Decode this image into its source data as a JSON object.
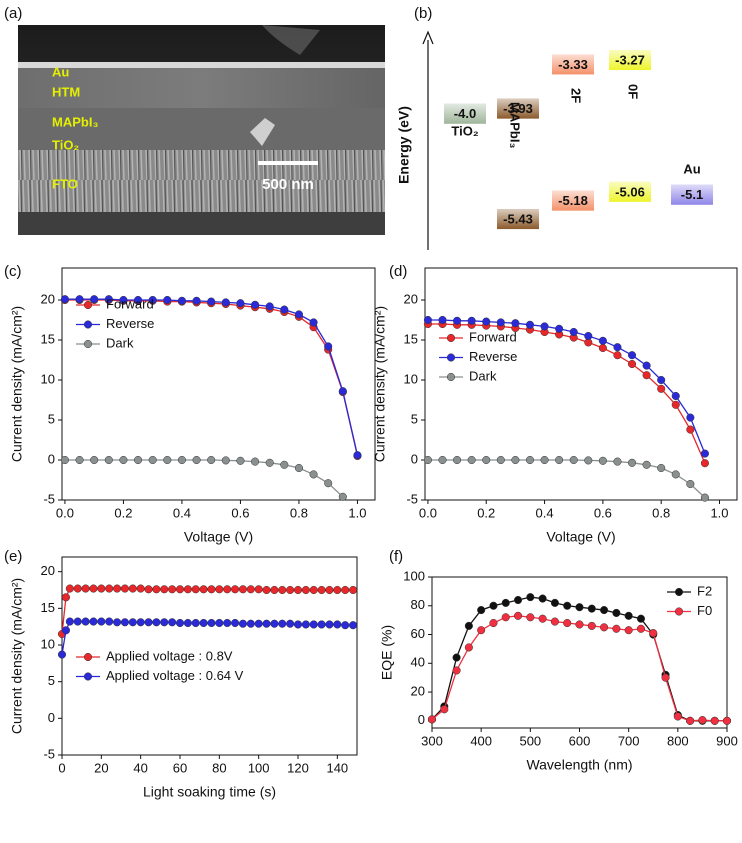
{
  "chart_data": [
    {
      "type": "image",
      "panel_label": "(a)",
      "labels": [
        "Au",
        "HTM",
        "MAPbI₃",
        "TiO₂",
        "FTO"
      ],
      "scale_bar": "500 nm"
    },
    {
      "type": "energy-level",
      "panel_label": "(b)",
      "ylabel": "Energy (eV)",
      "ylim": [
        -5.85,
        -2.93
      ],
      "levels": [
        {
          "name": "TiO₂",
          "color": "#9fb59a",
          "values": [
            -4.0
          ],
          "value_labels": [
            "-4.0"
          ]
        },
        {
          "name": "MAPbI₃",
          "color": "#8b5a2b",
          "values": [
            -3.93,
            -5.43
          ]
        },
        {
          "name": "2F",
          "color": "#f4916a",
          "values": [
            -3.33,
            -5.18
          ]
        },
        {
          "name": "0F",
          "color": "#eef52a",
          "values": [
            -3.27,
            -5.06
          ]
        },
        {
          "name": "Au",
          "color": "#8f86e8",
          "values": [
            -5.1
          ]
        }
      ]
    },
    {
      "type": "line",
      "panel_label": "(c)",
      "xlabel": "Voltage (V)",
      "ylabel": "Current density (mA/cm²)",
      "x": [
        0,
        0.05,
        0.1,
        0.15,
        0.2,
        0.25,
        0.3,
        0.35,
        0.4,
        0.45,
        0.5,
        0.55,
        0.6,
        0.65,
        0.7,
        0.75,
        0.8,
        0.85,
        0.9,
        0.95,
        1.0
      ],
      "series": [
        {
          "name": "Forward",
          "color": "#e8272a",
          "values": [
            20.0,
            20.0,
            20.0,
            20.0,
            19.9,
            19.9,
            19.9,
            19.8,
            19.8,
            19.7,
            19.6,
            19.5,
            19.3,
            19.1,
            18.9,
            18.5,
            17.9,
            16.6,
            13.8,
            8.5,
            0.5
          ]
        },
        {
          "name": "Reverse",
          "color": "#2a2ad8",
          "values": [
            20.1,
            20.1,
            20.1,
            20.1,
            20.0,
            20.0,
            20.0,
            20.0,
            19.9,
            19.9,
            19.8,
            19.7,
            19.6,
            19.4,
            19.2,
            18.8,
            18.2,
            17.2,
            14.2,
            8.6,
            0.6
          ]
        },
        {
          "name": "Dark",
          "color": "#8a8f8f",
          "values": [
            0,
            0,
            0,
            0,
            0,
            0,
            0,
            0,
            0,
            0,
            0,
            -0.05,
            -0.1,
            -0.2,
            -0.35,
            -0.6,
            -1.0,
            -1.8,
            -2.9,
            -4.6,
            null
          ]
        }
      ],
      "xlim": [
        -0.01,
        1.06
      ],
      "xticks": [
        {
          "value": 0,
          "label": "0.0"
        },
        0.2,
        0.4,
        0.6,
        0.8,
        {
          "value": 1,
          "label": "1.0"
        }
      ],
      "ylim": [
        -5,
        24
      ],
      "yticks": [
        -5,
        0,
        5,
        10,
        15,
        20
      ],
      "legend": "upper left"
    },
    {
      "type": "line",
      "panel_label": "(d)",
      "xlabel": "Voltage (V)",
      "ylabel": "Current density (mA/cm²)",
      "x": [
        0,
        0.05,
        0.1,
        0.15,
        0.2,
        0.25,
        0.3,
        0.35,
        0.4,
        0.45,
        0.5,
        0.55,
        0.6,
        0.65,
        0.7,
        0.75,
        0.8,
        0.85,
        0.9,
        0.95,
        1.0
      ],
      "series": [
        {
          "name": "Forward",
          "color": "#e8272a",
          "values": [
            17.0,
            17.0,
            16.9,
            16.9,
            16.8,
            16.7,
            16.5,
            16.3,
            16.0,
            15.7,
            15.3,
            14.7,
            14.0,
            13.1,
            12.0,
            10.6,
            8.9,
            6.9,
            3.8,
            -0.4,
            null
          ]
        },
        {
          "name": "Reverse",
          "color": "#2a2ad8",
          "values": [
            17.5,
            17.5,
            17.4,
            17.4,
            17.3,
            17.2,
            17.1,
            16.9,
            16.7,
            16.4,
            16.0,
            15.5,
            14.9,
            14.1,
            13.1,
            11.8,
            10.0,
            8.0,
            5.3,
            0.8,
            null
          ]
        },
        {
          "name": "Dark",
          "color": "#8a8f8f",
          "values": [
            0,
            0,
            0,
            0,
            0,
            0,
            0,
            0,
            0,
            0,
            0,
            -0.05,
            -0.1,
            -0.2,
            -0.35,
            -0.6,
            -1.0,
            -1.8,
            -3.0,
            -4.7,
            null
          ]
        }
      ],
      "xlim": [
        -0.01,
        1.06
      ],
      "xticks": [
        {
          "value": 0,
          "label": "0.0"
        },
        0.2,
        0.4,
        0.6,
        0.8,
        {
          "value": 1,
          "label": "1.0"
        }
      ],
      "ylim": [
        -5,
        24
      ],
      "yticks": [
        -5,
        0,
        5,
        10,
        15,
        20
      ],
      "legend": "center left"
    },
    {
      "type": "line",
      "panel_label": "(e)",
      "xlabel": "Light soaking time (s)",
      "ylabel": "Current density (mA/cm²)",
      "x": [
        0,
        2,
        4,
        8,
        12,
        16,
        20,
        24,
        28,
        32,
        36,
        40,
        44,
        48,
        52,
        56,
        60,
        64,
        68,
        72,
        76,
        80,
        84,
        88,
        92,
        96,
        100,
        104,
        108,
        112,
        116,
        120,
        124,
        128,
        132,
        136,
        140,
        144,
        148
      ],
      "series": [
        {
          "name": "Applied voltage : 0.8V",
          "color": "#e8272a",
          "values": [
            11.5,
            16.5,
            17.7,
            17.7,
            17.7,
            17.7,
            17.7,
            17.7,
            17.7,
            17.7,
            17.7,
            17.7,
            17.6,
            17.6,
            17.6,
            17.6,
            17.6,
            17.6,
            17.6,
            17.6,
            17.6,
            17.6,
            17.6,
            17.6,
            17.6,
            17.6,
            17.6,
            17.5,
            17.5,
            17.5,
            17.5,
            17.5,
            17.5,
            17.5,
            17.5,
            17.5,
            17.5,
            17.5,
            17.5
          ]
        },
        {
          "name": "Applied voltage : 0.64 V",
          "color": "#2a2ad8",
          "values": [
            8.7,
            12.0,
            13.2,
            13.2,
            13.2,
            13.2,
            13.2,
            13.2,
            13.1,
            13.1,
            13.1,
            13.1,
            13.1,
            13.1,
            13.1,
            13.1,
            13.0,
            13.0,
            13.0,
            13.0,
            13.0,
            13.0,
            13.0,
            13.0,
            12.9,
            12.9,
            12.9,
            12.9,
            12.9,
            12.9,
            12.9,
            12.8,
            12.8,
            12.8,
            12.8,
            12.8,
            12.8,
            12.7,
            12.7
          ]
        }
      ],
      "xlim": [
        0,
        150
      ],
      "xticks": [
        0,
        20,
        40,
        60,
        80,
        100,
        120,
        140
      ],
      "ylim": [
        -5,
        22
      ],
      "yticks": [
        -5,
        0,
        5,
        10,
        15,
        20
      ],
      "legend": "lower left"
    },
    {
      "type": "line",
      "panel_label": "(f)",
      "xlabel": "Wavelength (nm)",
      "ylabel": "EQE (%)",
      "x": [
        300,
        325,
        350,
        375,
        400,
        425,
        450,
        475,
        500,
        525,
        550,
        575,
        600,
        625,
        650,
        675,
        700,
        725,
        750,
        775,
        800,
        825,
        850,
        875,
        900
      ],
      "series": [
        {
          "name": "F2",
          "color": "#111111",
          "values": [
            1,
            10,
            44,
            66,
            77,
            80,
            82,
            84,
            86,
            85,
            82,
            80,
            79,
            78,
            77,
            75,
            73,
            71,
            60,
            32,
            4,
            0,
            0,
            0,
            0
          ]
        },
        {
          "name": "F0",
          "color": "#f03040",
          "values": [
            1,
            8,
            35,
            51,
            63,
            68,
            72,
            73,
            72,
            71,
            69,
            68,
            67,
            66,
            65,
            64,
            63,
            64,
            61,
            30,
            3,
            0,
            0.5,
            0,
            0
          ]
        }
      ],
      "xlim": [
        300,
        900
      ],
      "xticks": [
        300,
        400,
        500,
        600,
        700,
        800,
        900
      ],
      "ylim": [
        -5,
        100
      ],
      "yticks": [
        0,
        20,
        40,
        60,
        80,
        100
      ],
      "legend": "upper right"
    }
  ]
}
